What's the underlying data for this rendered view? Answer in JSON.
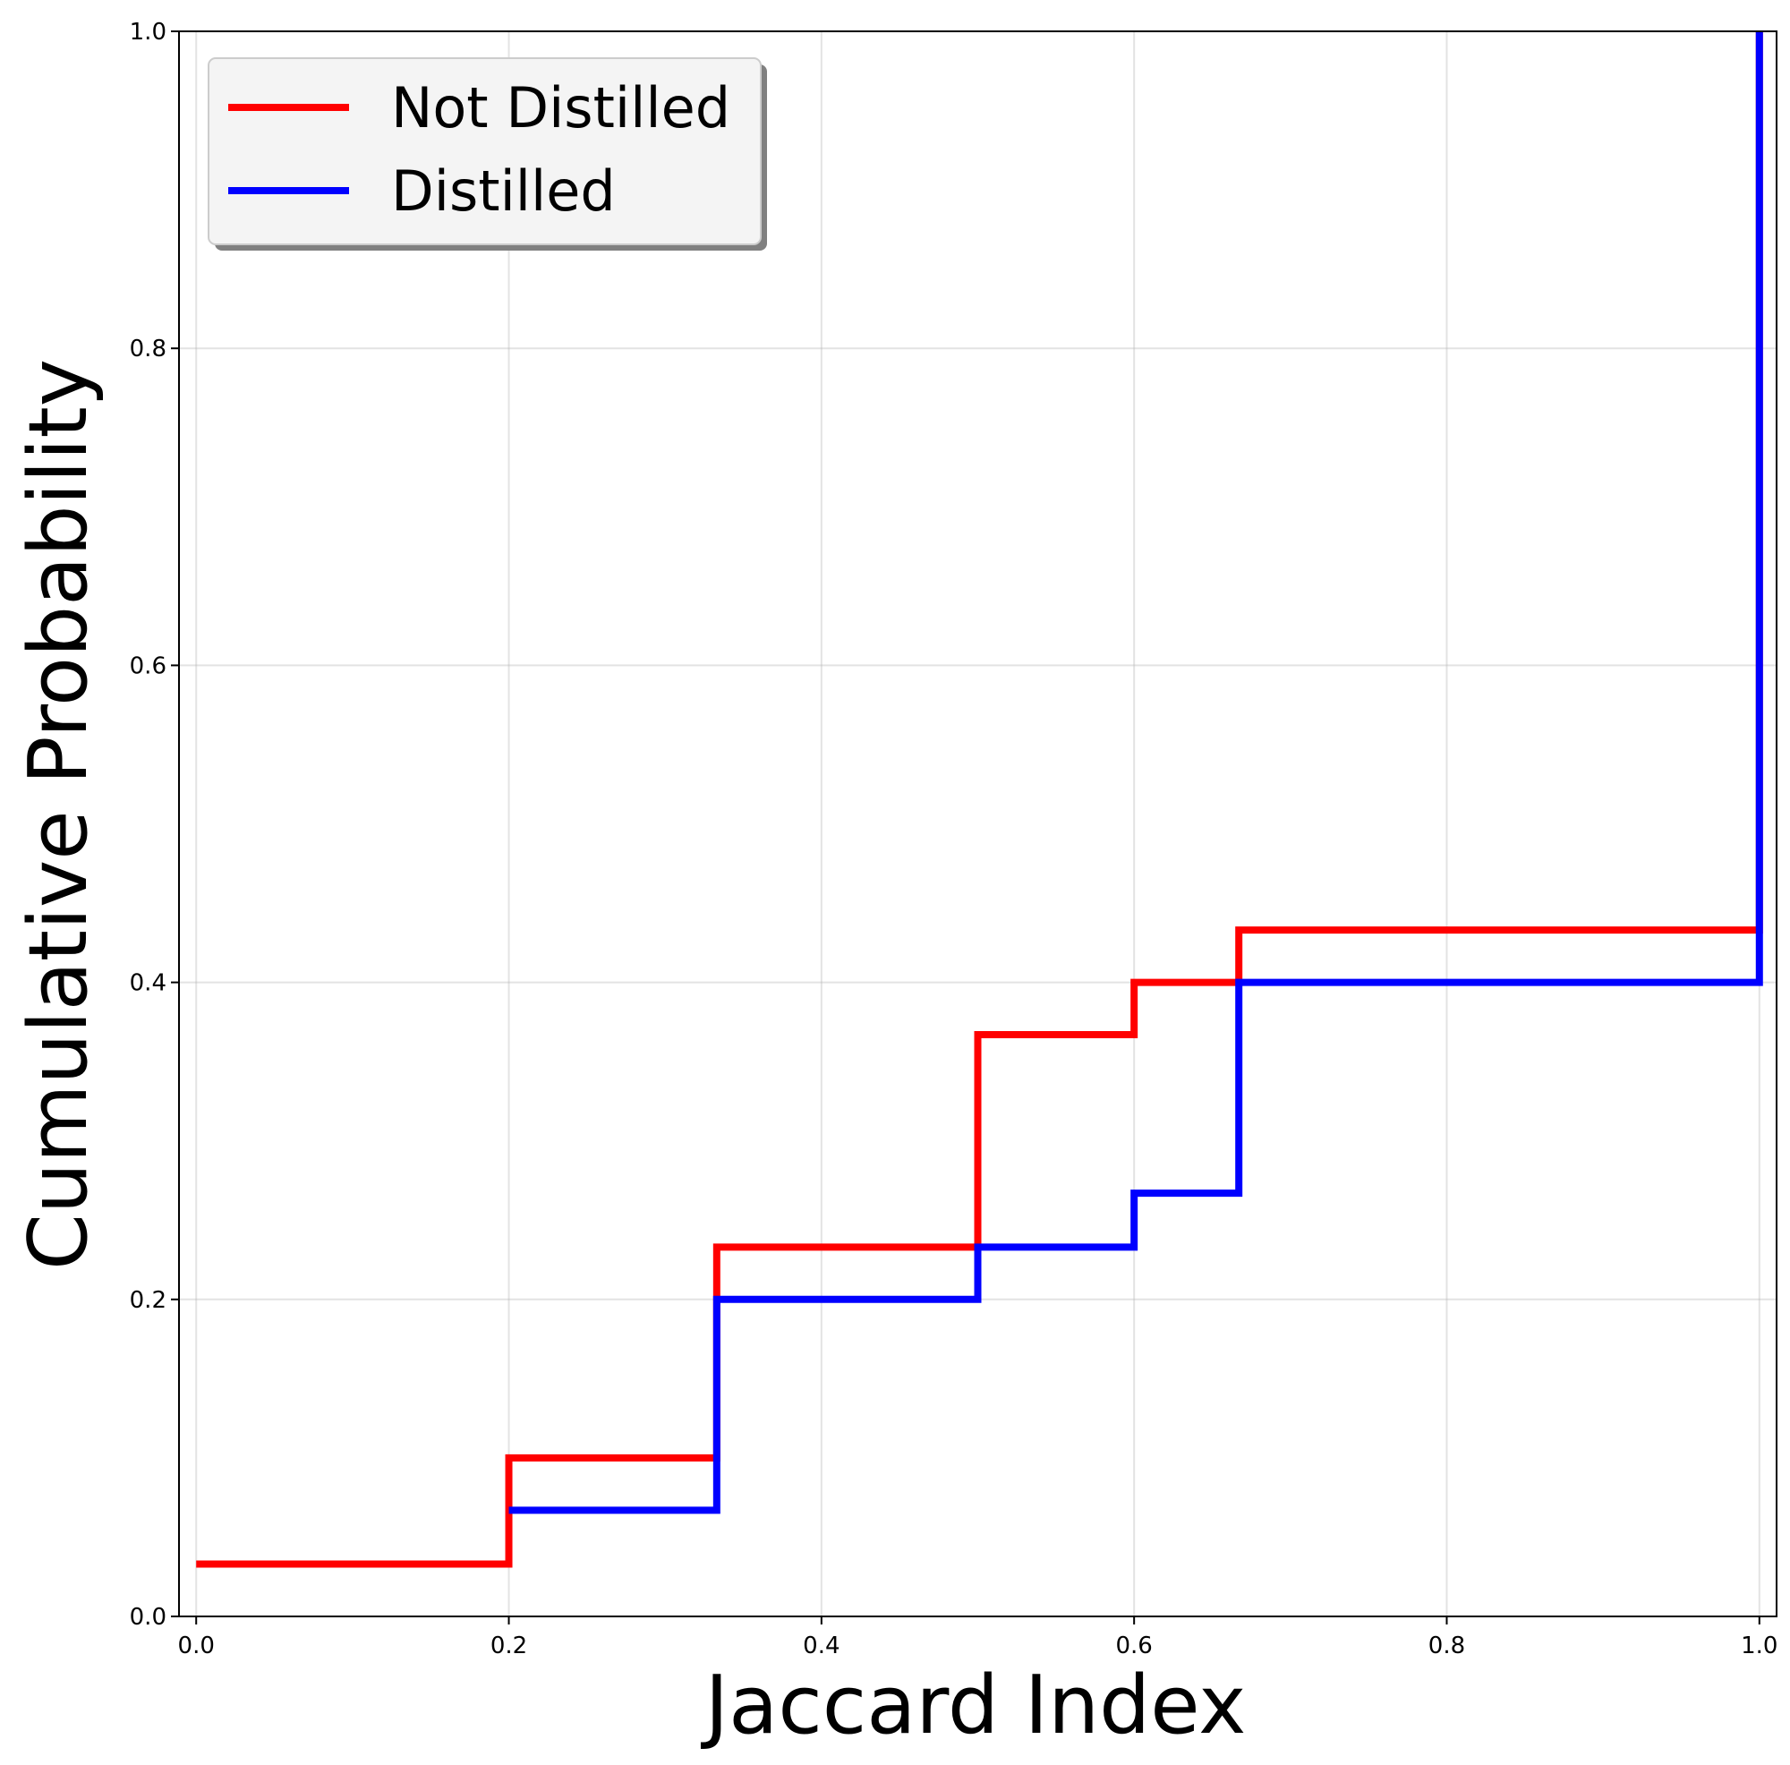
{
  "chart_data": {
    "type": "line",
    "drawstyle": "steps-post",
    "title": "",
    "xlabel": "Jaccard Index",
    "ylabel": "Cumulative Probability",
    "xlim": [
      -0.011,
      1.011
    ],
    "ylim": [
      0.0,
      1.0
    ],
    "grid": true,
    "xticks": [
      0.0,
      0.2,
      0.4,
      0.6,
      0.8,
      1.0
    ],
    "xtick_labels": [
      "0.0",
      "0.2",
      "0.4",
      "0.6",
      "0.8",
      "1.0"
    ],
    "yticks": [
      0.0,
      0.2,
      0.4,
      0.6,
      0.8,
      1.0
    ],
    "ytick_labels": [
      "0.0",
      "0.2",
      "0.4",
      "0.6",
      "0.8",
      "1.0"
    ],
    "legend_position": "top-left",
    "series": [
      {
        "name": "Not Distilled",
        "color": "#ff0000",
        "x": [
          0.0,
          0.2,
          0.333,
          0.5,
          0.6,
          0.667,
          1.0
        ],
        "y": [
          0.033,
          0.1,
          0.233,
          0.367,
          0.4,
          0.433,
          1.0
        ]
      },
      {
        "name": "Distilled",
        "color": "#0000ff",
        "x": [
          0.2,
          0.333,
          0.5,
          0.6,
          0.667,
          1.0
        ],
        "y": [
          0.067,
          0.2,
          0.233,
          0.267,
          0.4,
          1.0
        ]
      }
    ]
  }
}
